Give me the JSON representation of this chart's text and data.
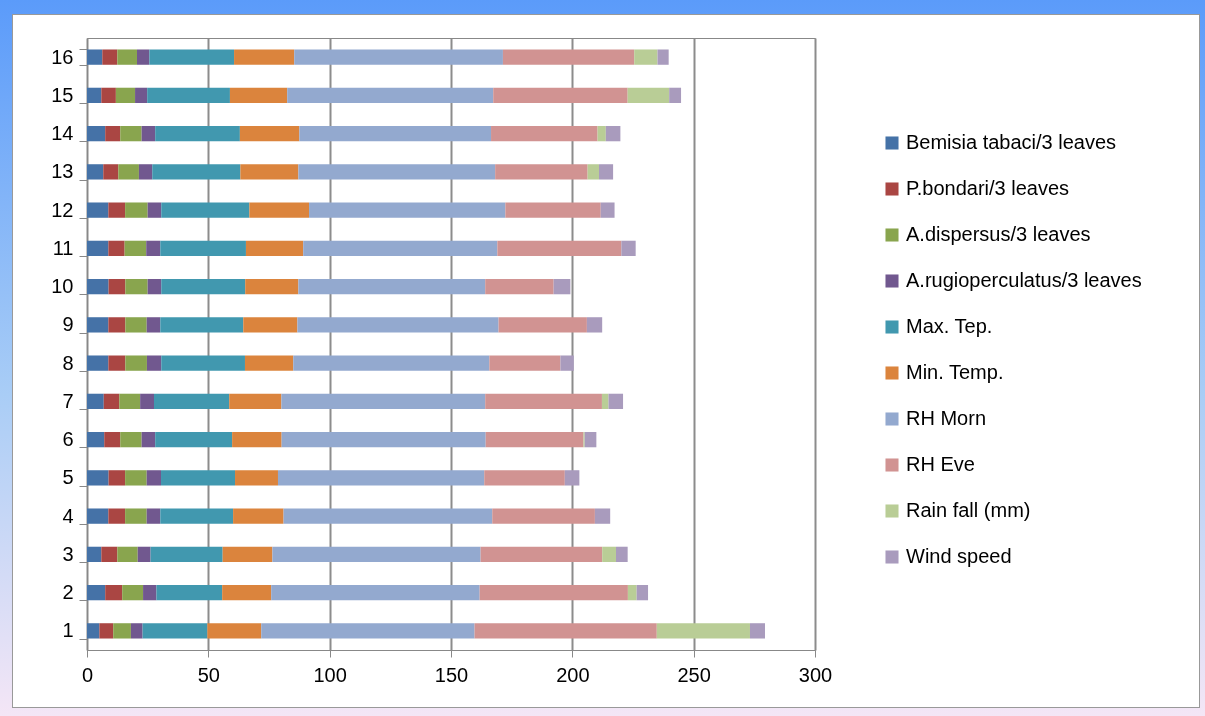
{
  "chart_data": {
    "type": "bar",
    "orientation": "horizontal",
    "stacked": true,
    "categories": [
      "16",
      "15",
      "14",
      "13",
      "12",
      "11",
      "10",
      "9",
      "8",
      "7",
      "6",
      "5",
      "4",
      "3",
      "2",
      "1"
    ],
    "series": [
      {
        "name": "Bemisia tabaci/3 leaves",
        "color": "#4572a7",
        "values": [
          6.3,
          5.9,
          7.5,
          6.7,
          8.8,
          8.8,
          8.9,
          8.8,
          8.8,
          6.9,
          7.1,
          8.9,
          8.8,
          5.9,
          7.5,
          5.1
        ]
      },
      {
        "name": "P.bondari/3 leaves",
        "color": "#aa4643",
        "values": [
          6.2,
          6.0,
          6.2,
          6.2,
          6.9,
          6.7,
          6.9,
          7.0,
          7.0,
          6.4,
          6.6,
          6.8,
          6.9,
          6.6,
          7.0,
          5.7
        ]
      },
      {
        "name": "A.dispersus/3 leaves",
        "color": "#89a54e",
        "values": [
          8.1,
          7.9,
          8.8,
          8.5,
          9.3,
          8.9,
          9.2,
          8.8,
          8.9,
          8.6,
          8.8,
          8.9,
          8.9,
          8.4,
          8.6,
          7.3
        ]
      },
      {
        "name": "A.rugioperculatus/3 leaves",
        "color": "#71588f",
        "values": [
          5.1,
          5.0,
          5.6,
          5.5,
          5.6,
          5.8,
          5.6,
          5.6,
          5.9,
          5.7,
          5.6,
          5.9,
          5.6,
          5.3,
          5.5,
          4.8
        ]
      },
      {
        "name": "Max. Tep.",
        "color": "#4198af",
        "values": [
          34.9,
          34.1,
          34.9,
          36.3,
          36.3,
          35.3,
          34.6,
          34.2,
          34.5,
          31.0,
          31.7,
          30.5,
          30.0,
          29.7,
          27.1,
          26.7
        ]
      },
      {
        "name": "Min. Temp.",
        "color": "#db843d",
        "values": [
          24.8,
          23.6,
          24.5,
          23.9,
          24.6,
          23.6,
          21.9,
          22.3,
          19.9,
          21.5,
          20.4,
          17.7,
          20.8,
          20.5,
          20.2,
          22.2
        ]
      },
      {
        "name": "RH Morn",
        "color": "#93a9cf",
        "values": [
          86.0,
          84.9,
          79.0,
          81.1,
          80.9,
          80.0,
          77.0,
          82.9,
          80.8,
          84.0,
          84.1,
          85.0,
          86.0,
          85.8,
          85.9,
          87.9
        ]
      },
      {
        "name": "RH Eve",
        "color": "#d19392",
        "values": [
          54.1,
          55.4,
          43.9,
          38.1,
          39.3,
          51.1,
          28.2,
          36.4,
          29.3,
          48.1,
          40.3,
          33.2,
          42.3,
          50.1,
          61.1,
          75.1
        ]
      },
      {
        "name": "Rain fall (mm)",
        "color": "#b9cd96",
        "values": [
          9.6,
          17.1,
          3.4,
          4.7,
          null,
          null,
          null,
          null,
          null,
          2.7,
          0.5,
          null,
          null,
          5.7,
          3.6,
          38.4
        ]
      },
      {
        "name": "Wind speed",
        "color": "#a99bbd",
        "values": [
          4.6,
          4.9,
          6.0,
          5.8,
          5.7,
          5.9,
          6.9,
          6.3,
          5.5,
          6.0,
          4.8,
          6.0,
          6.3,
          4.8,
          4.7,
          6.2
        ]
      }
    ],
    "xlim": [
      0,
      300
    ],
    "xticks": [
      0,
      50,
      100,
      150,
      200,
      250,
      300
    ],
    "grid": "x",
    "legend": "right"
  }
}
